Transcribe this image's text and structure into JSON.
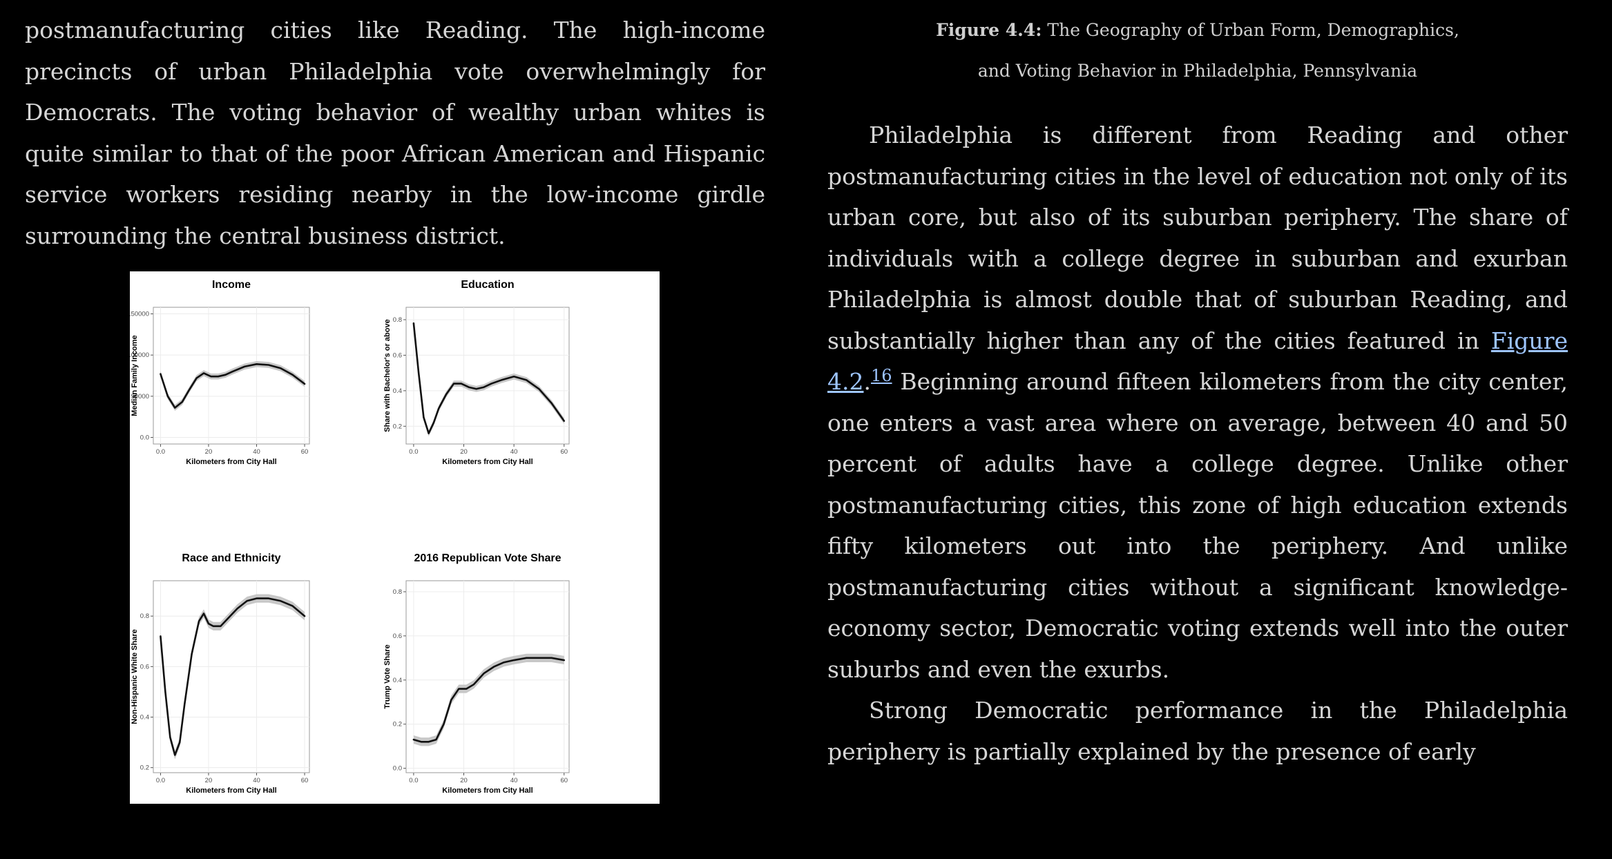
{
  "left_text": "postmanufacturing cities like Reading. The high-income precincts of urban Philadelphia vote overwhelmingly for Democrats. The voting behavior of wealthy urban whites is quite similar to that of the poor African American and Hispanic service workers residing nearby in the low-income girdle surrounding the central business district.",
  "caption": {
    "label": "Figure 4.4:",
    "text_line1": " The Geography of Urban Form, Demographics,",
    "text_line2": "and Voting Behavior in Philadelphia, Pennsylvania"
  },
  "para1": {
    "part1": "Philadelphia is different from Reading and other postmanufacturing cities in the level of education not only of its urban core, but also of its suburban periphery. The share of individuals with a college degree in suburban and exurban Philadelphia is almost double that of suburban Reading, and substantially higher than any of the cities featured in ",
    "link_text": "Figure 4.2",
    "after_link": ".",
    "footnote": "16",
    "part2": " Beginning around fifteen kilometers from the city center, one enters a vast area where on average, between 40 and 50 percent of adults have a college degree. Unlike other postmanufacturing cities, this zone of high education extends fifty kilometers out into the periphery. And unlike postmanufacturing cities without a significant knowledge-economy sector, Democratic voting extends well into the outer suburbs and even the exurbs."
  },
  "para2": "Strong Democratic performance in the Philadelphia periphery is partially explained by the presence of early",
  "chart_data": [
    {
      "type": "line",
      "title": "Income",
      "xlabel": "Kilometers from City Hall",
      "ylabel": "Median Family Income",
      "xlim": [
        -3,
        62
      ],
      "ylim": [
        -8000,
        158000
      ],
      "xticks": [
        0,
        20,
        40,
        60
      ],
      "yticks": [
        0,
        50000,
        100000,
        150000
      ],
      "x": [
        0,
        3,
        6,
        9,
        12,
        15,
        18,
        21,
        24,
        27,
        30,
        35,
        40,
        45,
        50,
        55,
        60
      ],
      "y": [
        77000,
        50000,
        36000,
        43000,
        58000,
        72000,
        78000,
        74000,
        74000,
        76000,
        80000,
        86000,
        89000,
        88000,
        84000,
        76000,
        65000
      ]
    },
    {
      "type": "line",
      "title": "Education",
      "xlabel": "Kilometers from City Hall",
      "ylabel": "Share with Bachelor's or above",
      "xlim": [
        -3,
        62
      ],
      "ylim": [
        0.1,
        0.87
      ],
      "xticks": [
        0,
        20,
        40,
        60
      ],
      "yticks": [
        0.2,
        0.4,
        0.6,
        0.8
      ],
      "x": [
        0,
        2,
        4,
        6,
        8,
        10,
        13,
        16,
        19,
        22,
        25,
        28,
        31,
        35,
        40,
        45,
        50,
        55,
        60
      ],
      "y": [
        0.78,
        0.5,
        0.25,
        0.16,
        0.22,
        0.3,
        0.38,
        0.44,
        0.44,
        0.42,
        0.41,
        0.42,
        0.44,
        0.46,
        0.48,
        0.46,
        0.41,
        0.33,
        0.23
      ]
    },
    {
      "type": "line",
      "title": "Race and Ethnicity",
      "xlabel": "Kilometers from City Hall",
      "ylabel": "Non-Hispanic White Share",
      "xlim": [
        -3,
        62
      ],
      "ylim": [
        0.18,
        0.94
      ],
      "xticks": [
        0,
        20,
        40,
        60
      ],
      "yticks": [
        0.2,
        0.4,
        0.6,
        0.8
      ],
      "x": [
        0,
        2,
        4,
        6,
        8,
        10,
        13,
        16,
        18,
        20,
        22,
        25,
        28,
        32,
        36,
        40,
        45,
        50,
        55,
        60
      ],
      "y": [
        0.72,
        0.5,
        0.32,
        0.25,
        0.3,
        0.45,
        0.65,
        0.78,
        0.81,
        0.77,
        0.76,
        0.76,
        0.79,
        0.83,
        0.86,
        0.87,
        0.87,
        0.86,
        0.84,
        0.8
      ]
    },
    {
      "type": "line",
      "title": "2016 Republican Vote Share",
      "xlabel": "Kilometers from City Hall",
      "ylabel": "Trump Vote Share",
      "xlim": [
        -3,
        62
      ],
      "ylim": [
        -0.02,
        0.85
      ],
      "xticks": [
        0,
        20,
        40,
        60
      ],
      "yticks": [
        0.0,
        0.2,
        0.4,
        0.6,
        0.8
      ],
      "x": [
        0,
        3,
        6,
        9,
        12,
        15,
        18,
        21,
        24,
        28,
        32,
        36,
        40,
        45,
        50,
        55,
        60
      ],
      "y": [
        0.13,
        0.12,
        0.12,
        0.13,
        0.2,
        0.31,
        0.36,
        0.36,
        0.38,
        0.43,
        0.46,
        0.48,
        0.49,
        0.5,
        0.5,
        0.5,
        0.49
      ]
    }
  ]
}
